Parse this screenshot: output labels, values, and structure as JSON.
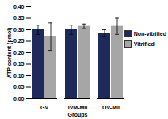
{
  "chart_data": {
    "type": "bar",
    "x_label": "Groups",
    "y_label": "ATP content (pmol)",
    "categories": [
      "GV",
      "IVM-MII",
      "OV-MII"
    ],
    "series": [
      {
        "name": "Non-vitrified",
        "color": "#1f2a5c",
        "values": [
          0.3,
          0.3,
          0.285
        ],
        "errors": [
          0.02,
          0.02,
          0.015
        ]
      },
      {
        "name": "Vitrified",
        "color": "#a6a6a6",
        "values": [
          0.27,
          0.315,
          0.315
        ],
        "errors": [
          0.06,
          0.01,
          0.035
        ]
      }
    ],
    "ylim": [
      0,
      0.4
    ],
    "yticks": [
      {
        "value": 0,
        "label": "0.00"
      },
      {
        "value": 0.05,
        "label": "0.05"
      },
      {
        "value": 0.1,
        "label": "0.10"
      },
      {
        "value": 0.15,
        "label": "0.15"
      },
      {
        "value": 0.2,
        "label": "0.20"
      },
      {
        "value": 0.25,
        "label": "0.25"
      },
      {
        "value": 0.3,
        "label": "0.30"
      },
      {
        "value": 0.35,
        "label": "0.35"
      },
      {
        "value": 0.4,
        "label": "0.40"
      }
    ],
    "legend": "right",
    "grid": false
  }
}
